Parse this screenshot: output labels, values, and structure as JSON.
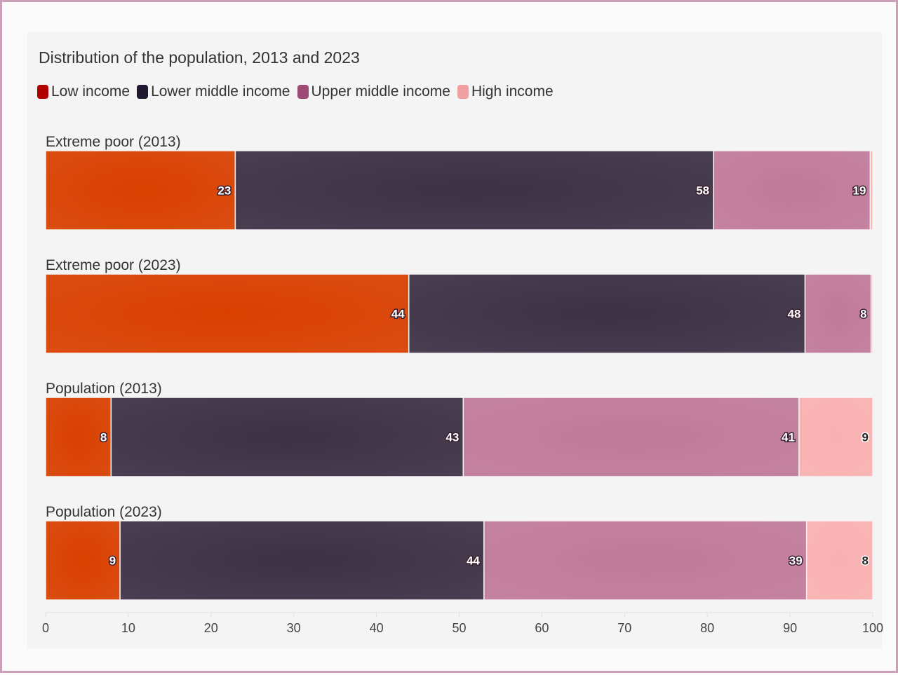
{
  "chart_data": {
    "type": "bar",
    "orientation": "horizontal",
    "stacked": true,
    "title": "Distribution of the population, 2013 and 2023",
    "categories": [
      "Extreme poor (2013)",
      "Extreme poor (2023)",
      "Population (2013)",
      "Population (2023)"
    ],
    "series": [
      {
        "name": "Low income",
        "color": "#d94000",
        "legend_color": "#b00000",
        "values": [
          23,
          44,
          8,
          9
        ]
      },
      {
        "name": "Lower middle income",
        "color": "#3d3145",
        "legend_color": "#201830",
        "values": [
          58,
          48,
          43,
          44
        ]
      },
      {
        "name": "Upper middle income",
        "color": "#c07a9a",
        "legend_color": "#9e4a75",
        "values": [
          19,
          8,
          41,
          39
        ]
      },
      {
        "name": "High income",
        "color": "#f9b0b0",
        "legend_color": "#f0a0a0",
        "values": [
          0.3,
          0.2,
          9,
          8
        ]
      }
    ],
    "xlim": [
      0,
      100
    ],
    "xticks": [
      0,
      10,
      20,
      30,
      40,
      50,
      60,
      70,
      80,
      90,
      100
    ],
    "grid": false,
    "legend_position": "top-left"
  }
}
